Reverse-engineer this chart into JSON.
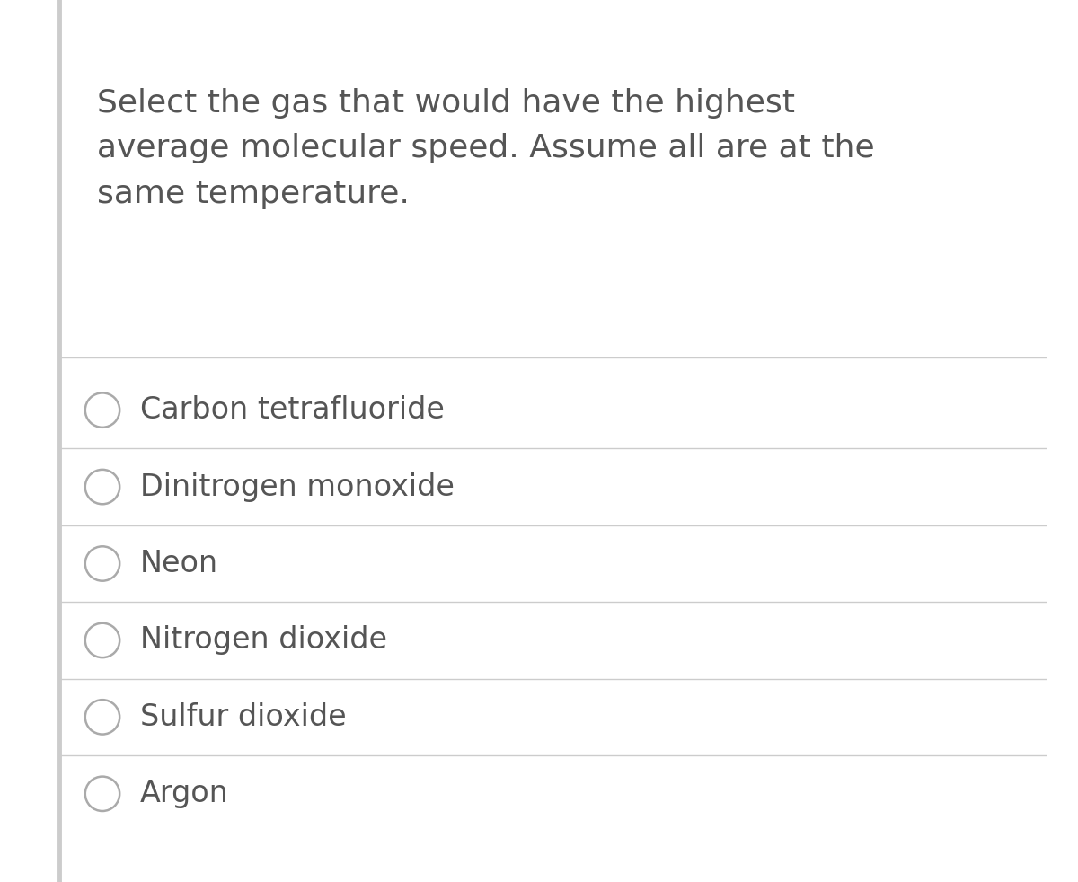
{
  "question": "Select the gas that would have the highest\naverage molecular speed. Assume all are at the\nsame temperature.",
  "options": [
    "Carbon tetrafluoride",
    "Dinitrogen monoxide",
    "Neon",
    "Nitrogen dioxide",
    "Sulfur dioxide",
    "Argon"
  ],
  "bg_color": "#ffffff",
  "text_color": "#555555",
  "line_color": "#cccccc",
  "circle_color": "#aaaaaa",
  "left_bar_color": "#cccccc",
  "question_fontsize": 26,
  "option_fontsize": 24,
  "fig_width": 12.0,
  "fig_height": 9.82,
  "dpi": 100
}
